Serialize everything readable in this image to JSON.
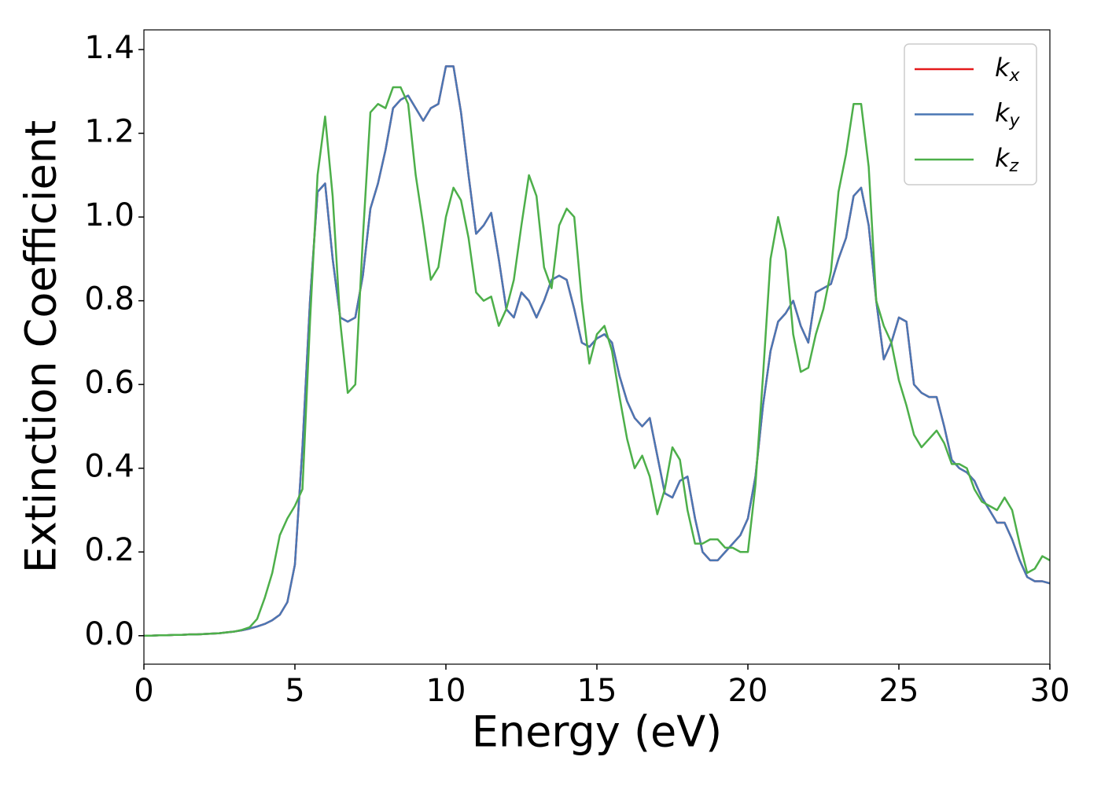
{
  "chart_data": {
    "type": "line",
    "xlabel": "Energy (eV)",
    "ylabel": "Extinction Coefficient",
    "x": [
      0,
      0.25,
      0.5,
      0.75,
      1,
      1.25,
      1.5,
      1.75,
      2,
      2.25,
      2.5,
      2.75,
      3,
      3.25,
      3.5,
      3.75,
      4,
      4.25,
      4.5,
      4.75,
      5,
      5.25,
      5.5,
      5.75,
      6,
      6.25,
      6.5,
      6.75,
      7,
      7.25,
      7.5,
      7.75,
      8,
      8.25,
      8.5,
      8.75,
      9,
      9.25,
      9.5,
      9.75,
      10,
      10.25,
      10.5,
      10.75,
      11,
      11.25,
      11.5,
      11.75,
      12,
      12.25,
      12.5,
      12.75,
      13,
      13.25,
      13.5,
      13.75,
      14,
      14.25,
      14.5,
      14.75,
      15,
      15.25,
      15.5,
      15.75,
      16,
      16.25,
      16.5,
      16.75,
      17,
      17.25,
      17.5,
      17.75,
      18,
      18.25,
      18.5,
      18.75,
      19,
      19.25,
      19.5,
      19.75,
      20,
      20.25,
      20.5,
      20.75,
      21,
      21.25,
      21.5,
      21.75,
      22,
      22.25,
      22.5,
      22.75,
      23,
      23.25,
      23.5,
      23.75,
      24,
      24.25,
      24.5,
      24.75,
      25,
      25.25,
      25.5,
      25.75,
      26,
      26.25,
      26.5,
      26.75,
      27,
      27.25,
      27.5,
      27.75,
      28,
      28.25,
      28.5,
      28.75,
      29,
      29.25,
      29.5,
      29.75,
      30
    ],
    "series": [
      {
        "name": "kx",
        "color": "#e41a1c",
        "values": [
          0,
          0,
          0.001,
          0.001,
          0.002,
          0.002,
          0.003,
          0.003,
          0.004,
          0.005,
          0.006,
          0.008,
          0.01,
          0.013,
          0.017,
          0.022,
          0.028,
          0.037,
          0.05,
          0.08,
          0.17,
          0.45,
          0.8,
          1.06,
          1.08,
          0.9,
          0.76,
          0.75,
          0.76,
          0.86,
          1.02,
          1.08,
          1.16,
          1.26,
          1.28,
          1.29,
          1.26,
          1.23,
          1.26,
          1.27,
          1.36,
          1.36,
          1.25,
          1.1,
          0.96,
          0.98,
          1.01,
          0.9,
          0.78,
          0.76,
          0.82,
          0.8,
          0.76,
          0.8,
          0.85,
          0.86,
          0.85,
          0.78,
          0.7,
          0.69,
          0.71,
          0.72,
          0.7,
          0.62,
          0.56,
          0.52,
          0.5,
          0.52,
          0.43,
          0.34,
          0.33,
          0.37,
          0.38,
          0.28,
          0.2,
          0.18,
          0.18,
          0.2,
          0.22,
          0.24,
          0.28,
          0.38,
          0.55,
          0.68,
          0.75,
          0.77,
          0.8,
          0.74,
          0.7,
          0.82,
          0.83,
          0.84,
          0.9,
          0.95,
          1.05,
          1.07,
          0.98,
          0.8,
          0.66,
          0.7,
          0.76,
          0.75,
          0.6,
          0.58,
          0.57,
          0.57,
          0.5,
          0.42,
          0.4,
          0.39,
          0.37,
          0.33,
          0.3,
          0.27,
          0.27,
          0.23,
          0.18,
          0.14,
          0.13,
          0.13,
          0.125
        ]
      },
      {
        "name": "ky",
        "color": "#4a77b4",
        "values": [
          0,
          0,
          0.001,
          0.001,
          0.002,
          0.002,
          0.003,
          0.003,
          0.004,
          0.005,
          0.006,
          0.008,
          0.01,
          0.013,
          0.017,
          0.022,
          0.028,
          0.037,
          0.05,
          0.08,
          0.17,
          0.45,
          0.8,
          1.06,
          1.08,
          0.9,
          0.76,
          0.75,
          0.76,
          0.86,
          1.02,
          1.08,
          1.16,
          1.26,
          1.28,
          1.29,
          1.26,
          1.23,
          1.26,
          1.27,
          1.36,
          1.36,
          1.25,
          1.1,
          0.96,
          0.98,
          1.01,
          0.9,
          0.78,
          0.76,
          0.82,
          0.8,
          0.76,
          0.8,
          0.85,
          0.86,
          0.85,
          0.78,
          0.7,
          0.69,
          0.71,
          0.72,
          0.7,
          0.62,
          0.56,
          0.52,
          0.5,
          0.52,
          0.43,
          0.34,
          0.33,
          0.37,
          0.38,
          0.28,
          0.2,
          0.18,
          0.18,
          0.2,
          0.22,
          0.24,
          0.28,
          0.38,
          0.55,
          0.68,
          0.75,
          0.77,
          0.8,
          0.74,
          0.7,
          0.82,
          0.83,
          0.84,
          0.9,
          0.95,
          1.05,
          1.07,
          0.98,
          0.8,
          0.66,
          0.7,
          0.76,
          0.75,
          0.6,
          0.58,
          0.57,
          0.57,
          0.5,
          0.42,
          0.4,
          0.39,
          0.37,
          0.33,
          0.3,
          0.27,
          0.27,
          0.23,
          0.18,
          0.14,
          0.13,
          0.13,
          0.125
        ]
      },
      {
        "name": "kz",
        "color": "#4daf4a",
        "values": [
          0,
          0,
          0.001,
          0.001,
          0.002,
          0.002,
          0.003,
          0.003,
          0.004,
          0.005,
          0.006,
          0.008,
          0.01,
          0.014,
          0.02,
          0.04,
          0.09,
          0.15,
          0.24,
          0.28,
          0.31,
          0.35,
          0.75,
          1.1,
          1.24,
          1.05,
          0.75,
          0.58,
          0.6,
          0.95,
          1.25,
          1.27,
          1.26,
          1.31,
          1.31,
          1.27,
          1.1,
          0.98,
          0.85,
          0.88,
          1.0,
          1.07,
          1.04,
          0.95,
          0.82,
          0.8,
          0.81,
          0.74,
          0.78,
          0.85,
          0.98,
          1.1,
          1.05,
          0.88,
          0.83,
          0.98,
          1.02,
          1.0,
          0.8,
          0.65,
          0.72,
          0.74,
          0.68,
          0.57,
          0.47,
          0.4,
          0.43,
          0.38,
          0.29,
          0.35,
          0.45,
          0.42,
          0.3,
          0.22,
          0.22,
          0.23,
          0.23,
          0.21,
          0.21,
          0.2,
          0.2,
          0.36,
          0.62,
          0.9,
          1.0,
          0.92,
          0.72,
          0.63,
          0.64,
          0.72,
          0.78,
          0.87,
          1.06,
          1.15,
          1.27,
          1.27,
          1.12,
          0.8,
          0.74,
          0.7,
          0.61,
          0.55,
          0.48,
          0.45,
          0.47,
          0.49,
          0.46,
          0.41,
          0.41,
          0.4,
          0.35,
          0.32,
          0.31,
          0.3,
          0.33,
          0.3,
          0.22,
          0.15,
          0.16,
          0.19,
          0.18
        ]
      }
    ],
    "xlim": [
      0,
      30
    ],
    "xticks": [
      0,
      5,
      10,
      15,
      20,
      25,
      30
    ],
    "ylim": [
      -0.068,
      1.447
    ],
    "yticks": [
      {
        "value": 0,
        "label": "0.0"
      },
      0.2,
      0.4,
      0.6,
      0.8,
      {
        "value": 1,
        "label": "1.0"
      },
      1.2,
      1.4
    ],
    "legend": "upper right",
    "grid": false
  }
}
